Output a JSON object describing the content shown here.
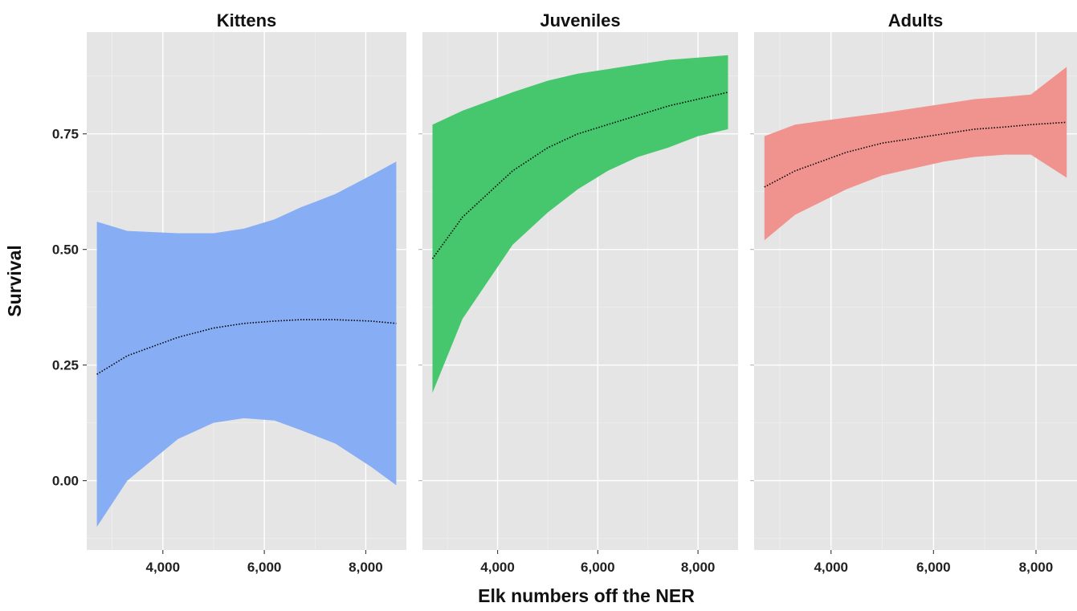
{
  "chart_data": {
    "type": "area",
    "xlabel": "Elk numbers off the NER",
    "ylabel": "Survival",
    "xlim": [
      2500,
      8800
    ],
    "ylim": [
      -0.15,
      0.97
    ],
    "x_ticks": [
      4000,
      6000,
      8000
    ],
    "x_tick_labels": [
      "4,000",
      "6,000",
      "8,000"
    ],
    "y_ticks": [
      0.0,
      0.25,
      0.5,
      0.75
    ],
    "y_tick_labels": [
      "0.00",
      "0.25",
      "0.50",
      "0.75"
    ],
    "grid": true,
    "legend": "none",
    "panels": [
      {
        "title": "Kittens",
        "color": "#87adf5",
        "x": [
          2700,
          3300,
          4300,
          5000,
          5600,
          6200,
          6700,
          7400,
          8100,
          8600
        ],
        "y": [
          0.23,
          0.27,
          0.31,
          0.33,
          0.34,
          0.345,
          0.348,
          0.348,
          0.345,
          0.34
        ],
        "lower": [
          -0.1,
          0.0,
          0.09,
          0.125,
          0.135,
          0.13,
          0.11,
          0.08,
          0.03,
          -0.01
        ],
        "upper": [
          0.56,
          0.54,
          0.535,
          0.535,
          0.545,
          0.565,
          0.59,
          0.62,
          0.66,
          0.69
        ]
      },
      {
        "title": "Juveniles",
        "color": "#46c76d",
        "x": [
          2700,
          3300,
          4300,
          5000,
          5600,
          6200,
          6800,
          7400,
          8000,
          8600
        ],
        "y": [
          0.48,
          0.57,
          0.67,
          0.72,
          0.75,
          0.77,
          0.79,
          0.81,
          0.825,
          0.84
        ],
        "lower": [
          0.19,
          0.35,
          0.51,
          0.58,
          0.63,
          0.67,
          0.7,
          0.72,
          0.745,
          0.76
        ],
        "upper": [
          0.77,
          0.8,
          0.84,
          0.865,
          0.88,
          0.89,
          0.9,
          0.91,
          0.915,
          0.92
        ]
      },
      {
        "title": "Adults",
        "color": "#f0938f",
        "x": [
          2700,
          3300,
          4300,
          5000,
          5600,
          6200,
          6800,
          7400,
          7900,
          8600
        ],
        "y": [
          0.635,
          0.67,
          0.71,
          0.73,
          0.74,
          0.75,
          0.76,
          0.765,
          0.77,
          0.775
        ],
        "lower": [
          0.52,
          0.575,
          0.63,
          0.66,
          0.675,
          0.69,
          0.7,
          0.705,
          0.705,
          0.655
        ],
        "upper": [
          0.745,
          0.77,
          0.785,
          0.795,
          0.805,
          0.815,
          0.825,
          0.83,
          0.835,
          0.895
        ]
      }
    ]
  }
}
